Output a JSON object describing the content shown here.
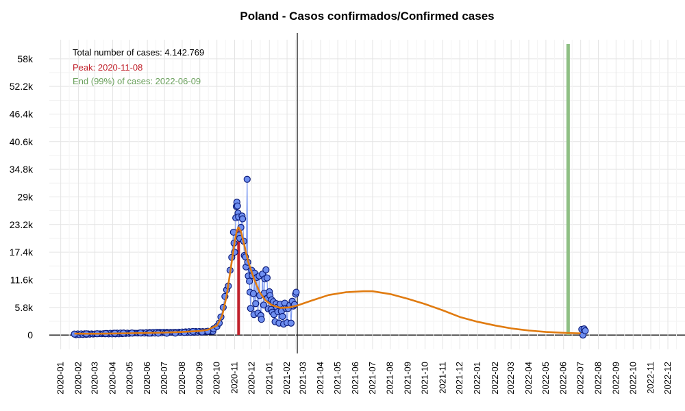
{
  "chart_data": {
    "type": "line",
    "title": "Poland - Casos confirmados/Confirmed cases",
    "xlabel": "",
    "ylabel": "",
    "x_axis": {
      "type": "date",
      "range": [
        "2019-12-12",
        "2022-12-31"
      ],
      "tick_labels": [
        "2020-01",
        "2020-02",
        "2020-03",
        "2020-04",
        "2020-05",
        "2020-06",
        "2020-07",
        "2020-08",
        "2020-09",
        "2020-10",
        "2020-11",
        "2020-12",
        "2021-01",
        "2021-02",
        "2021-03",
        "2021-04",
        "2021-05",
        "2021-06",
        "2021-07",
        "2021-08",
        "2021-09",
        "2021-10",
        "2021-11",
        "2021-12",
        "2022-01",
        "2022-02",
        "2022-03",
        "2022-04",
        "2022-05",
        "2022-06",
        "2022-07",
        "2022-08",
        "2022-09",
        "2022-10",
        "2022-11",
        "2022-12"
      ]
    },
    "y_axis": {
      "range": [
        -3000,
        62000
      ],
      "ticks": [
        0,
        5800,
        11600,
        17400,
        23200,
        29000,
        34800,
        40600,
        46400,
        52200,
        58000
      ],
      "tick_labels": [
        "0",
        "5.8k",
        "11.6k",
        "17.4k",
        "23.2k",
        "29k",
        "34.8k",
        "40.6k",
        "46.4k",
        "52.2k",
        "58k"
      ]
    },
    "grid": true,
    "colors": {
      "points_fill": "#6f8ff0",
      "points_stroke": "#0c1c7a",
      "fit_line": "#e07b10",
      "peak": "#c0202a",
      "end": "#8ebf84",
      "today": "#222222"
    },
    "annotations": {
      "total": "Total number of cases: 4.142.769",
      "peak": "Peak: 2020-11-08",
      "end": "End (99%) of cases: 2022-06-09"
    },
    "peak_date": "2020-11-08",
    "end_date": "2022-06-09",
    "today_line_date": "2021-02-19",
    "series": [
      {
        "kind": "observed_points",
        "points": [
          [
            "2020-01-25",
            200
          ],
          [
            "2020-02-15",
            250
          ],
          [
            "2020-03-05",
            280
          ],
          [
            "2020-03-20",
            330
          ],
          [
            "2020-04-05",
            380
          ],
          [
            "2020-04-20",
            420
          ],
          [
            "2020-05-05",
            430
          ],
          [
            "2020-05-20",
            450
          ],
          [
            "2020-06-05",
            420
          ],
          [
            "2020-06-20",
            400
          ],
          [
            "2020-07-05",
            380
          ],
          [
            "2020-07-20",
            420
          ],
          [
            "2020-08-05",
            550
          ],
          [
            "2020-08-20",
            750
          ],
          [
            "2020-09-05",
            650
          ],
          [
            "2020-09-15",
            800
          ],
          [
            "2020-09-25",
            1300
          ],
          [
            "2020-10-01",
            1800
          ],
          [
            "2020-10-05",
            2500
          ],
          [
            "2020-10-08",
            3800
          ],
          [
            "2020-10-12",
            5800
          ],
          [
            "2020-10-15",
            8100
          ],
          [
            "2020-10-18",
            9500
          ],
          [
            "2020-10-21",
            10300
          ],
          [
            "2020-10-24",
            13600
          ],
          [
            "2020-10-27",
            16300
          ],
          [
            "2020-10-30",
            21600
          ],
          [
            "2020-10-31",
            19300
          ],
          [
            "2020-11-01",
            17400
          ],
          [
            "2020-11-03",
            24600
          ],
          [
            "2020-11-04",
            27000
          ],
          [
            "2020-11-05",
            27900
          ],
          [
            "2020-11-06",
            27100
          ],
          [
            "2020-11-07",
            25600
          ],
          [
            "2020-11-08",
            24800
          ],
          [
            "2020-11-09",
            21000
          ],
          [
            "2020-11-10",
            20300
          ],
          [
            "2020-11-12",
            22600
          ],
          [
            "2020-11-14",
            25000
          ],
          [
            "2020-11-15",
            24400
          ],
          [
            "2020-11-17",
            19700
          ],
          [
            "2020-11-18",
            16700
          ],
          [
            "2020-11-20",
            16400
          ],
          [
            "2020-11-21",
            14300
          ],
          [
            "2020-11-23",
            32700
          ],
          [
            "2020-11-24",
            15300
          ],
          [
            "2020-11-25",
            12400
          ],
          [
            "2020-11-27",
            11300
          ],
          [
            "2020-11-28",
            9000
          ],
          [
            "2020-11-29",
            5600
          ],
          [
            "2020-12-01",
            13600
          ],
          [
            "2020-12-02",
            12500
          ],
          [
            "2020-12-04",
            8700
          ],
          [
            "2020-12-05",
            4300
          ],
          [
            "2020-12-06",
            13000
          ],
          [
            "2020-12-08",
            6600
          ],
          [
            "2020-12-10",
            12100
          ],
          [
            "2020-12-12",
            4600
          ],
          [
            "2020-12-14",
            12400
          ],
          [
            "2020-12-15",
            8300
          ],
          [
            "2020-12-17",
            4100
          ],
          [
            "2020-12-18",
            3300
          ],
          [
            "2020-12-20",
            12800
          ],
          [
            "2020-12-22",
            6300
          ],
          [
            "2020-12-23",
            8800
          ],
          [
            "2020-12-24",
            11800
          ],
          [
            "2020-12-26",
            13700
          ],
          [
            "2020-12-28",
            12000
          ],
          [
            "2020-12-29",
            7800
          ],
          [
            "2020-12-30",
            5500
          ],
          [
            "2021-01-01",
            9100
          ],
          [
            "2021-01-02",
            8300
          ],
          [
            "2021-01-04",
            5400
          ],
          [
            "2021-01-05",
            7400
          ],
          [
            "2021-01-06",
            4800
          ],
          [
            "2021-01-08",
            7000
          ],
          [
            "2021-01-09",
            4300
          ],
          [
            "2021-01-11",
            2800
          ],
          [
            "2021-01-13",
            6600
          ],
          [
            "2021-01-14",
            5800
          ],
          [
            "2021-01-16",
            4900
          ],
          [
            "2021-01-18",
            2500
          ],
          [
            "2021-01-20",
            6500
          ],
          [
            "2021-01-22",
            5000
          ],
          [
            "2021-01-24",
            3900
          ],
          [
            "2021-01-26",
            2300
          ],
          [
            "2021-01-28",
            6700
          ],
          [
            "2021-01-30",
            5600
          ],
          [
            "2021-02-01",
            2600
          ],
          [
            "2021-02-03",
            5600
          ],
          [
            "2021-02-06",
            6300
          ],
          [
            "2021-02-08",
            2500
          ],
          [
            "2021-02-10",
            7100
          ],
          [
            "2021-02-12",
            6100
          ],
          [
            "2021-02-14",
            6400
          ],
          [
            "2021-02-16",
            8600
          ],
          [
            "2021-02-17",
            9000
          ],
          [
            "2022-07-03",
            1200
          ],
          [
            "2022-07-05",
            0
          ],
          [
            "2022-07-07",
            1300
          ],
          [
            "2022-07-09",
            900
          ]
        ]
      },
      {
        "kind": "fitted_curve",
        "points": [
          [
            "2020-01-25",
            300
          ],
          [
            "2020-03-01",
            280
          ],
          [
            "2020-04-01",
            320
          ],
          [
            "2020-05-01",
            380
          ],
          [
            "2020-06-01",
            440
          ],
          [
            "2020-07-01",
            520
          ],
          [
            "2020-08-01",
            650
          ],
          [
            "2020-09-01",
            850
          ],
          [
            "2020-09-15",
            1100
          ],
          [
            "2020-10-01",
            2000
          ],
          [
            "2020-10-10",
            4000
          ],
          [
            "2020-10-18",
            8200
          ],
          [
            "2020-10-25",
            13800
          ],
          [
            "2020-11-01",
            19500
          ],
          [
            "2020-11-05",
            22000
          ],
          [
            "2020-11-08",
            22600
          ],
          [
            "2020-11-12",
            21800
          ],
          [
            "2020-11-18",
            18900
          ],
          [
            "2020-11-25",
            15300
          ],
          [
            "2020-12-05",
            11800
          ],
          [
            "2020-12-15",
            9000
          ],
          [
            "2020-12-25",
            7300
          ],
          [
            "2021-01-05",
            6300
          ],
          [
            "2021-01-20",
            5700
          ],
          [
            "2021-02-05",
            5800
          ],
          [
            "2021-02-19",
            6200
          ],
          [
            "2021-03-15",
            7200
          ],
          [
            "2021-04-15",
            8400
          ],
          [
            "2021-05-15",
            9000
          ],
          [
            "2021-06-15",
            9200
          ],
          [
            "2021-07-01",
            9200
          ],
          [
            "2021-08-01",
            8600
          ],
          [
            "2021-09-01",
            7600
          ],
          [
            "2021-10-01",
            6500
          ],
          [
            "2021-11-01",
            5200
          ],
          [
            "2021-12-01",
            3800
          ],
          [
            "2022-01-01",
            2800
          ],
          [
            "2022-02-01",
            2000
          ],
          [
            "2022-03-01",
            1400
          ],
          [
            "2022-04-01",
            950
          ],
          [
            "2022-05-01",
            650
          ],
          [
            "2022-06-09",
            420
          ],
          [
            "2022-07-01",
            350
          ]
        ]
      }
    ]
  }
}
